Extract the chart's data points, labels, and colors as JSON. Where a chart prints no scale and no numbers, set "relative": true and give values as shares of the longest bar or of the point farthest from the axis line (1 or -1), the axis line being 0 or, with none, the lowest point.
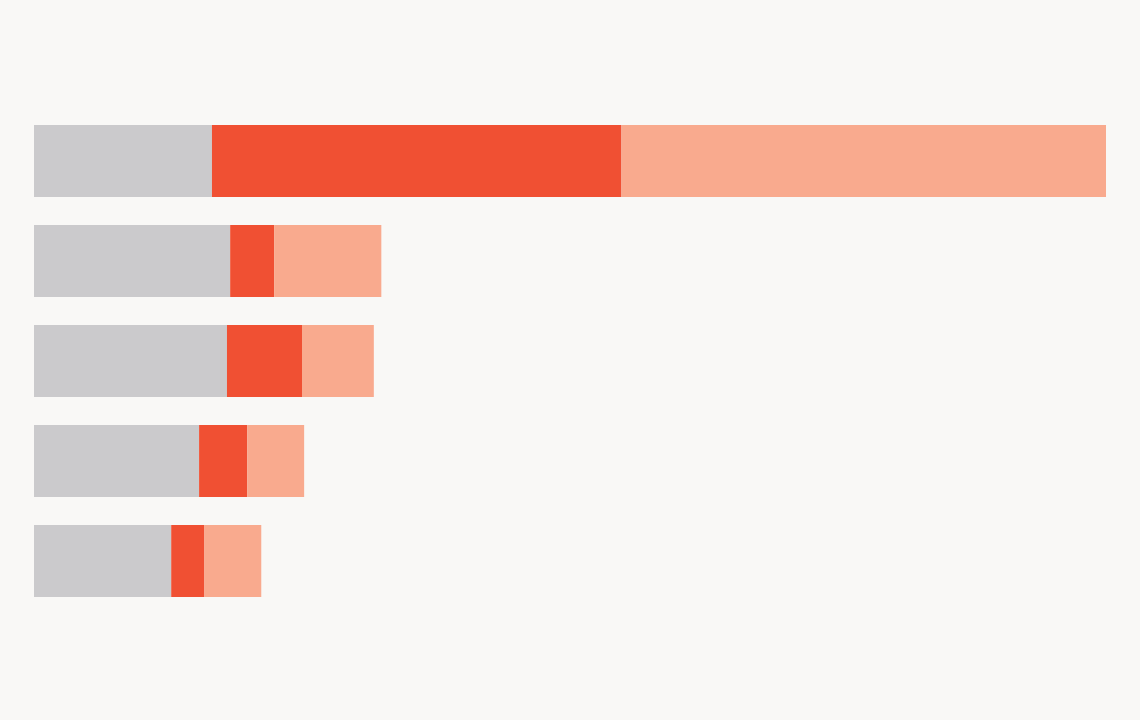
{
  "chart_data": {
    "type": "bar",
    "orientation": "horizontal",
    "stacked": true,
    "relative": true,
    "tick_labels": false,
    "categories": [
      null,
      null,
      null,
      null,
      null
    ],
    "series": [
      {
        "color": "#cbcacc",
        "values": [
          0.166,
          0.183,
          0.18,
          0.154,
          0.128
        ]
      },
      {
        "color": "#f05033",
        "values": [
          0.382,
          0.041,
          0.07,
          0.045,
          0.031
        ]
      },
      {
        "color": "#f9aa8e",
        "values": [
          0.452,
          0.1,
          0.067,
          0.053,
          0.053
        ]
      }
    ]
  }
}
